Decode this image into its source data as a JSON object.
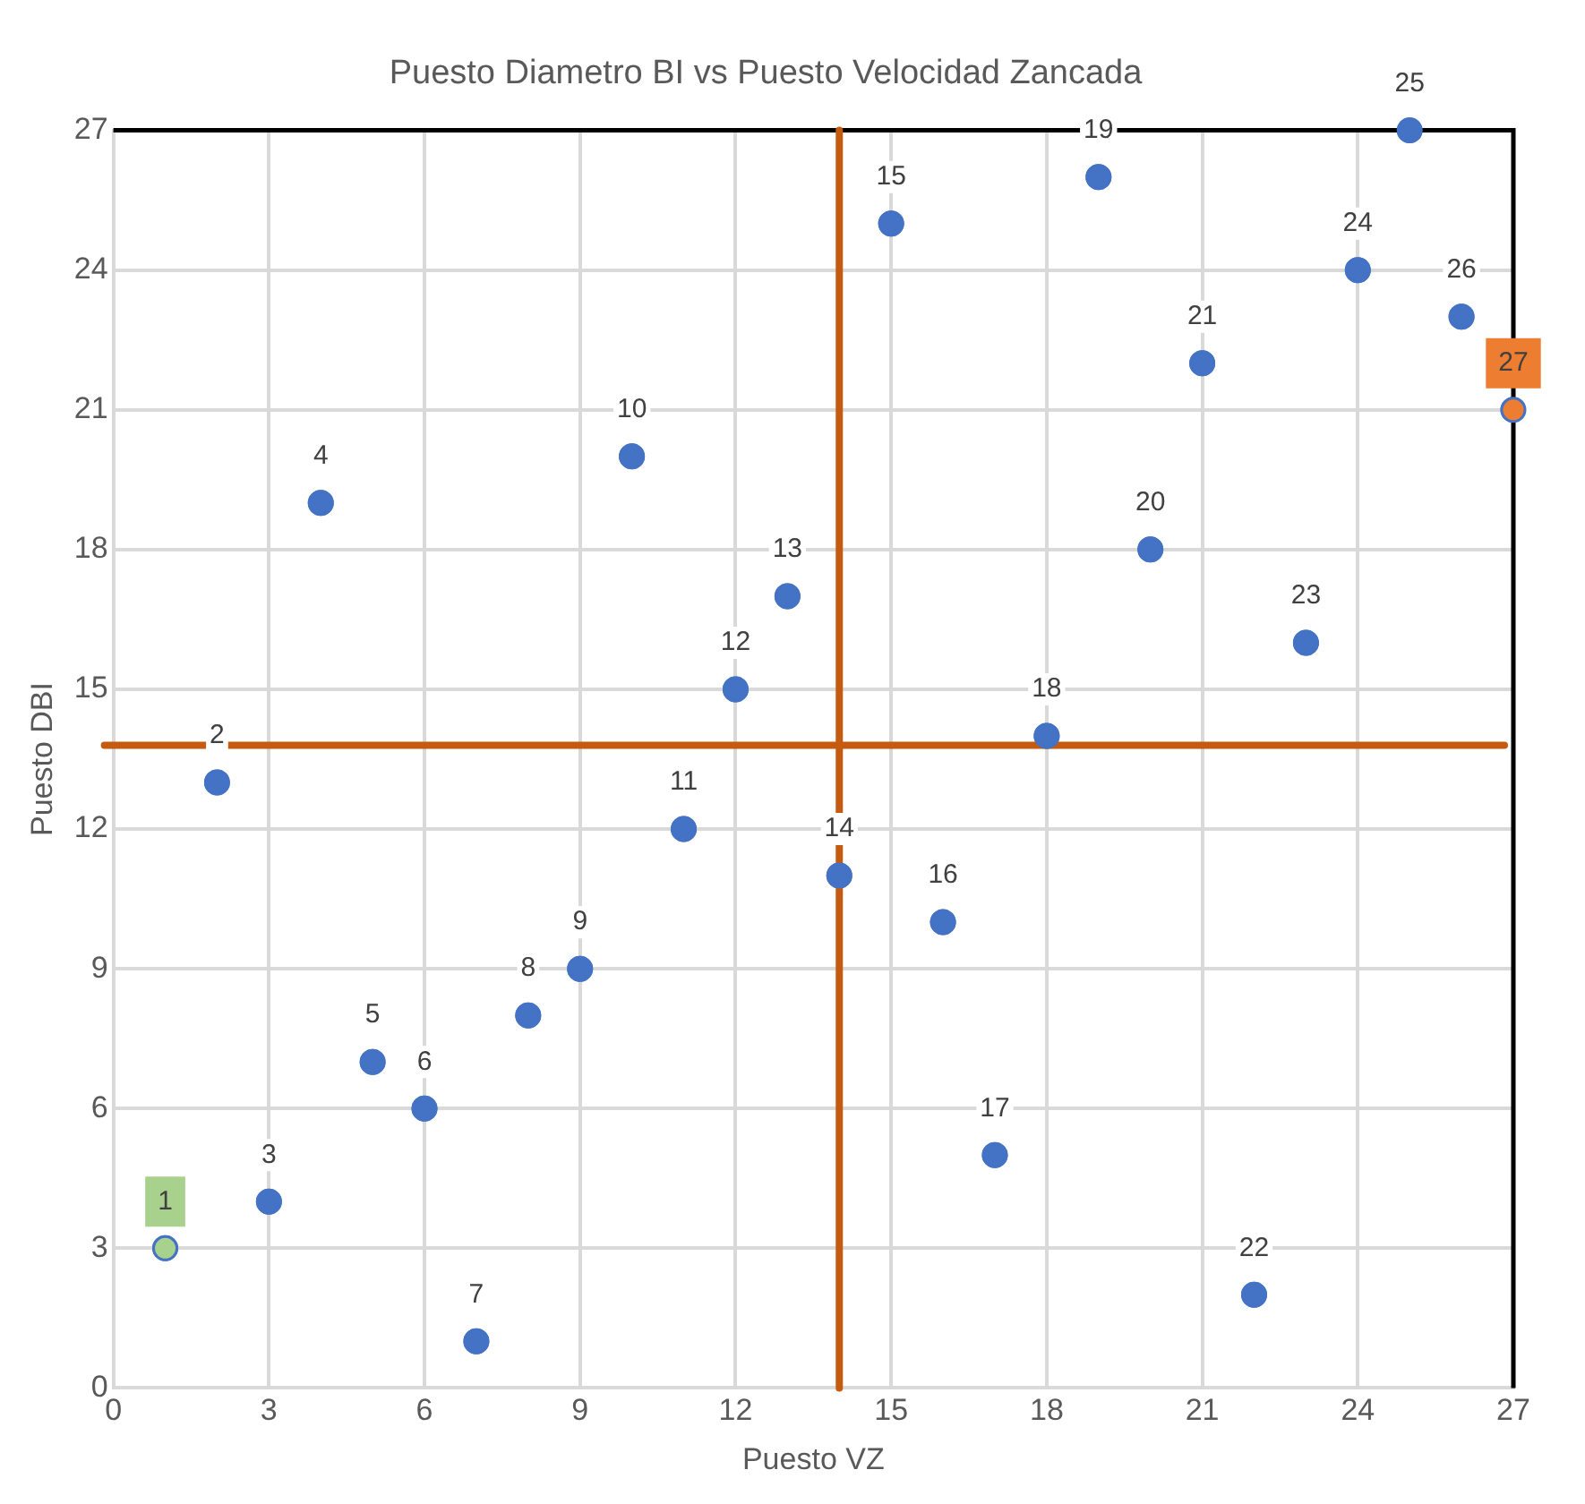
{
  "chart_data": {
    "type": "scatter",
    "title": "Puesto Diametro BI vs Puesto Velocidad Zancada",
    "xlabel": "Puesto VZ",
    "ylabel": "Puesto DBI",
    "x": [
      1,
      2,
      3,
      4,
      5,
      6,
      7,
      8,
      9,
      10,
      11,
      12,
      13,
      14,
      15,
      16,
      17,
      18,
      19,
      20,
      21,
      22,
      23,
      24,
      25,
      26,
      27
    ],
    "series": [
      {
        "color": "#4472c4",
        "values": [
          3,
          13,
          4,
          19,
          7,
          6,
          1,
          8,
          9,
          20,
          12,
          15,
          17,
          11,
          25,
          10,
          5,
          14,
          26,
          18,
          22,
          2,
          16,
          24,
          27,
          23,
          21
        ],
        "colors": [
          "#a9d18e",
          "#4472c4",
          "#4472c4",
          "#4472c4",
          "#4472c4",
          "#4472c4",
          "#4472c4",
          "#4472c4",
          "#4472c4",
          "#4472c4",
          "#4472c4",
          "#4472c4",
          "#4472c4",
          "#4472c4",
          "#4472c4",
          "#4472c4",
          "#4472c4",
          "#4472c4",
          "#4472c4",
          "#4472c4",
          "#4472c4",
          "#4472c4",
          "#4472c4",
          "#4472c4",
          "#4472c4",
          "#4472c4",
          "#ed7d31"
        ]
      }
    ],
    "annotations": [
      {
        "text": "1",
        "x": 1,
        "y": 3
      },
      {
        "text": "2",
        "x": 2,
        "y": 13
      },
      {
        "text": "3",
        "x": 3,
        "y": 4
      },
      {
        "text": "4",
        "x": 4,
        "y": 19
      },
      {
        "text": "5",
        "x": 5,
        "y": 7
      },
      {
        "text": "6",
        "x": 6,
        "y": 6
      },
      {
        "text": "7",
        "x": 7,
        "y": 1
      },
      {
        "text": "8",
        "x": 8,
        "y": 8
      },
      {
        "text": "9",
        "x": 9,
        "y": 9
      },
      {
        "text": "10",
        "x": 10,
        "y": 20
      },
      {
        "text": "11",
        "x": 11,
        "y": 12
      },
      {
        "text": "12",
        "x": 12,
        "y": 15
      },
      {
        "text": "13",
        "x": 13,
        "y": 17
      },
      {
        "text": "14",
        "x": 14,
        "y": 11
      },
      {
        "text": "15",
        "x": 15,
        "y": 25
      },
      {
        "text": "16",
        "x": 16,
        "y": 10
      },
      {
        "text": "17",
        "x": 17,
        "y": 5
      },
      {
        "text": "18",
        "x": 18,
        "y": 14
      },
      {
        "text": "19",
        "x": 19,
        "y": 26
      },
      {
        "text": "20",
        "x": 20,
        "y": 18
      },
      {
        "text": "21",
        "x": 21,
        "y": 22
      },
      {
        "text": "22",
        "x": 22,
        "y": 2
      },
      {
        "text": "23",
        "x": 23,
        "y": 16
      },
      {
        "text": "24",
        "x": 24,
        "y": 24
      },
      {
        "text": "25",
        "x": 25,
        "y": 27
      },
      {
        "text": "26",
        "x": 26,
        "y": 23
      },
      {
        "text": "27",
        "x": 27,
        "y": 21
      }
    ],
    "xlim": [
      0,
      27
    ],
    "xticks": [
      0,
      3,
      6,
      9,
      12,
      15,
      18,
      21,
      24,
      27
    ],
    "ylim": [
      0,
      27
    ],
    "yticks": [
      0,
      3,
      6,
      9,
      12,
      15,
      18,
      21,
      24,
      27
    ],
    "grid": true,
    "legend": false,
    "marker": "circle",
    "ref_lines": [
      {
        "axis": "x",
        "value": 14,
        "color": "#c55a11"
      },
      {
        "axis": "y",
        "value": 13.8,
        "color": "#c55a11"
      }
    ]
  }
}
